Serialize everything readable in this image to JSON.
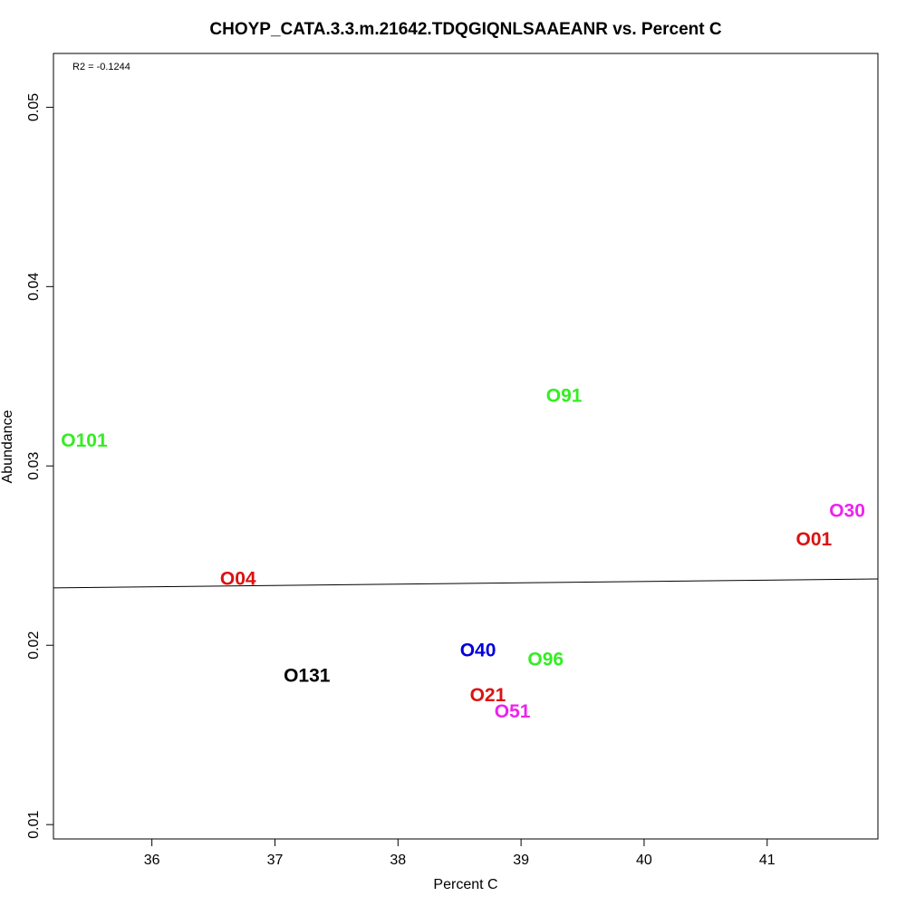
{
  "chart_data": {
    "type": "scatter",
    "title": "CHOYP_CATA.3.3.m.21642.TDQGIQNLSAAEANR vs. Percent C",
    "xlabel": "Percent C",
    "ylabel": "Abundance",
    "annotation": "R2 = -0.1244",
    "xlim": [
      35.2,
      41.9
    ],
    "ylim": [
      0.0092,
      0.053
    ],
    "xticks": [
      36,
      37,
      38,
      39,
      40,
      41
    ],
    "yticks": [
      0.01,
      0.02,
      0.03,
      0.04,
      0.05
    ],
    "xtick_labels": [
      "36",
      "37",
      "38",
      "39",
      "40",
      "41"
    ],
    "ytick_labels": [
      "0.01",
      "0.02",
      "0.03",
      "0.04",
      "0.05"
    ],
    "grid": false,
    "legend": "none",
    "points": [
      {
        "label": "O101",
        "x": 35.45,
        "y": 0.0314,
        "color": "#33ee22"
      },
      {
        "label": "O91",
        "x": 39.35,
        "y": 0.0339,
        "color": "#33ee22"
      },
      {
        "label": "O30",
        "x": 41.65,
        "y": 0.0275,
        "color": "#ee22ee"
      },
      {
        "label": "O01",
        "x": 41.38,
        "y": 0.0259,
        "color": "#dd1111"
      },
      {
        "label": "O04",
        "x": 36.7,
        "y": 0.0237,
        "color": "#dd1111"
      },
      {
        "label": "O40",
        "x": 38.65,
        "y": 0.0197,
        "color": "#0000dd"
      },
      {
        "label": "O96",
        "x": 39.2,
        "y": 0.0192,
        "color": "#33ee22"
      },
      {
        "label": "O131",
        "x": 37.26,
        "y": 0.0183,
        "color": "#000000"
      },
      {
        "label": "O21",
        "x": 38.73,
        "y": 0.0172,
        "color": "#dd1111"
      },
      {
        "label": "O51",
        "x": 38.93,
        "y": 0.0163,
        "color": "#ee22ee"
      }
    ],
    "regression_line": {
      "x": [
        35.2,
        41.9
      ],
      "y": [
        0.0232,
        0.0237
      ]
    }
  }
}
